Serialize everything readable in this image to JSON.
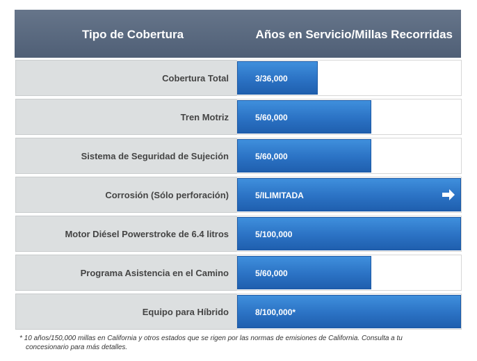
{
  "header": {
    "col1": "Tipo de Cobertura",
    "col2": "Años en Servicio/Millas Recorridas"
  },
  "chart_data": {
    "type": "bar",
    "orientation": "horizontal",
    "categories": [
      "Cobertura Total",
      "Tren Motriz",
      "Sistema de Seguridad de Sujeción",
      "Corrosión (Sólo perforación)",
      "Motor Diésel Powerstroke de 6.4 litros",
      "Programa Asistencia en el Camino",
      "Equipo para Híbrido"
    ],
    "values": [
      36000,
      60000,
      60000,
      100000,
      100000,
      60000,
      100000
    ],
    "value_labels": [
      "3/36,000",
      "5/60,000",
      "5/60,000",
      "5/ILIMITADA",
      "5/100,000",
      "5/60,000",
      "8/100,000*"
    ],
    "unlimited": [
      false,
      false,
      false,
      true,
      false,
      false,
      false
    ],
    "xlim": [
      0,
      100000
    ],
    "grid": false,
    "legend": "none",
    "colors": {
      "bar": "#2b72c4",
      "label_cell": "#dcdfe0",
      "header": "#5a6a80"
    }
  },
  "footnote": {
    "line1": "* 10 años/150,000 millas en California y otros estados que se rigen por las normas de emisiones de California. Consulta a tu",
    "line2": "concesionario para más detalles."
  },
  "icons": {
    "arrow": "arrow-right-icon"
  }
}
